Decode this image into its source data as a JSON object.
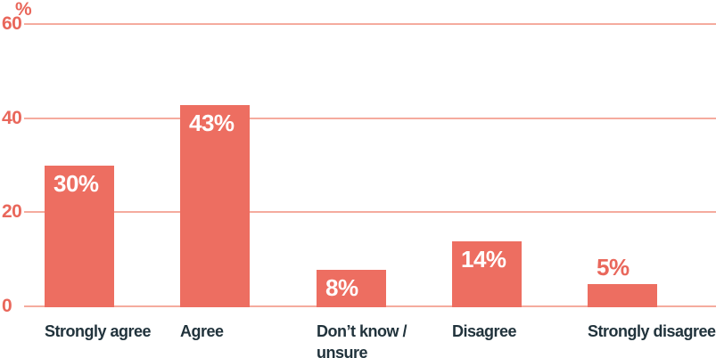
{
  "chart_data": {
    "type": "bar",
    "title": "",
    "xlabel": "",
    "ylabel": "%",
    "categories": [
      "Strongly agree",
      "Agree",
      "Don’t know / unsure",
      "Disagree",
      "Strongly disagree"
    ],
    "values": [
      30,
      43,
      8,
      14,
      5
    ],
    "value_labels": [
      "30%",
      "43%",
      "8%",
      "14%",
      "5%"
    ],
    "yticks": [
      0,
      20,
      40,
      60
    ],
    "ylim": [
      0,
      60
    ],
    "grid": true,
    "legend_position": "none",
    "value_label_placement": [
      "inside",
      "inside",
      "inside",
      "inside",
      "outside"
    ],
    "category_wrap": [
      false,
      false,
      true,
      false,
      false
    ],
    "colors": {
      "bar": "#ED6E61",
      "gridline": "#F5AB9E",
      "axis_text": "#E9675B",
      "category_text": "#21333C",
      "value_label_inside": "#FFFFFF",
      "value_label_outside": "#E9675B",
      "background": "#FFFFFF"
    }
  }
}
